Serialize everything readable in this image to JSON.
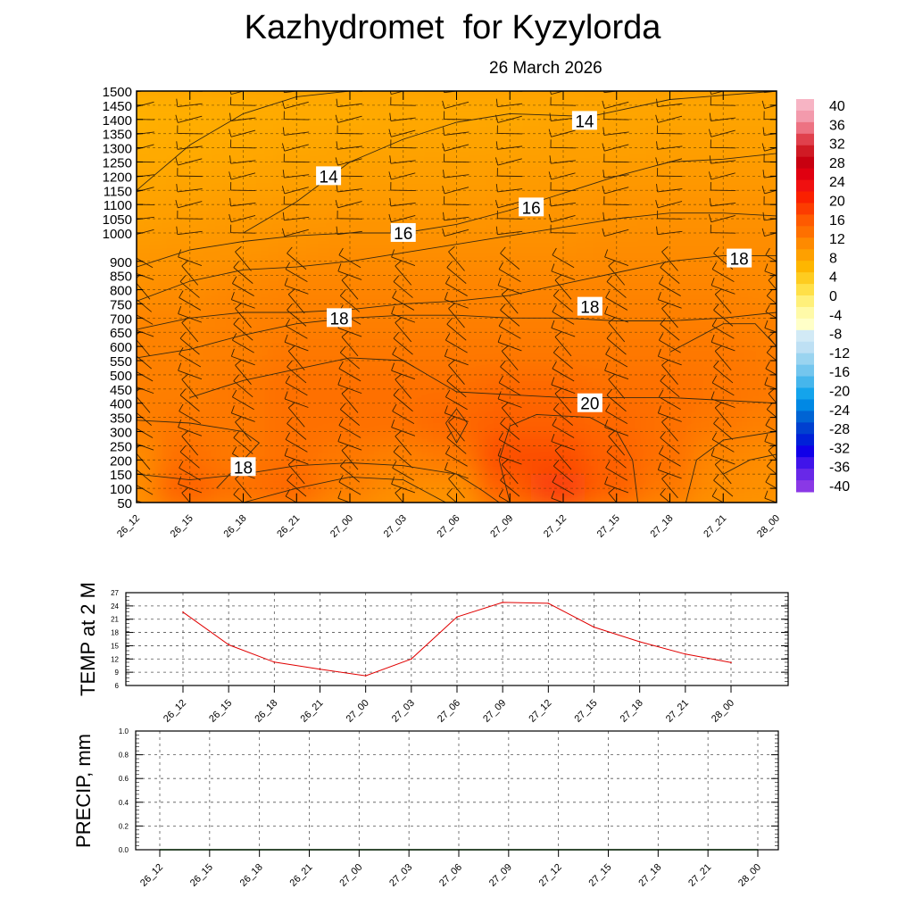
{
  "header": {
    "title": "Kazhydromet  for Kyzylorda",
    "date": "26 March 2026"
  },
  "chart_data": [
    {
      "type": "heatmap",
      "name": "temperature-height-section",
      "x": [
        "26_12",
        "26_15",
        "26_18",
        "26_21",
        "27_00",
        "27_03",
        "27_06",
        "27_09",
        "27_12",
        "27_15",
        "27_18",
        "27_21",
        "28_00"
      ],
      "y": [
        50,
        100,
        150,
        200,
        250,
        300,
        350,
        400,
        450,
        500,
        550,
        600,
        650,
        700,
        750,
        800,
        850,
        900,
        1000,
        1050,
        1100,
        1150,
        1200,
        1250,
        1300,
        1350,
        1400,
        1450,
        1500
      ],
      "ylim": [
        50,
        1500
      ],
      "contour_labels": [
        {
          "text": "14",
          "x": 3.6,
          "y": 1200
        },
        {
          "text": "14",
          "x": 8.4,
          "y": 1395
        },
        {
          "text": "16",
          "x": 5.0,
          "y": 1000
        },
        {
          "text": "16",
          "x": 7.4,
          "y": 1090
        },
        {
          "text": "18",
          "x": 11.3,
          "y": 910
        },
        {
          "text": "18",
          "x": 8.5,
          "y": 740
        },
        {
          "text": "18",
          "x": 3.8,
          "y": 700
        },
        {
          "text": "20",
          "x": 8.5,
          "y": 400
        },
        {
          "text": "18",
          "x": 2.0,
          "y": 175
        }
      ],
      "colorbar": {
        "ticks": [
          "40",
          "36",
          "32",
          "28",
          "24",
          "20",
          "16",
          "12",
          "8",
          "4",
          "0",
          "-4",
          "-8",
          "-12",
          "-16",
          "-20",
          "-24",
          "-28",
          "-32",
          "-36",
          "-40"
        ],
        "colors": [
          "#f7b4c4",
          "#f39aac",
          "#ed7282",
          "#e0404c",
          "#d01a24",
          "#c80010",
          "#e00010",
          "#f01010",
          "#fa2000",
          "#fc3c00",
          "#fe5a00",
          "#fe7000",
          "#fe8a00",
          "#fea000",
          "#feb600",
          "#fecc20",
          "#ffe048",
          "#fff07a",
          "#fffaa8",
          "#ffffc8",
          "#d2eaf6",
          "#bee0f4",
          "#9ad4f0",
          "#74c6ee",
          "#46b6ec",
          "#14a4ec",
          "#0088e4",
          "#0064d4",
          "#0040d0",
          "#0020d8",
          "#1000e8",
          "#4014ea",
          "#6828e8",
          "#8a38e6"
        ]
      },
      "temperature_field": [
        [
          17.0,
          20.0,
          19.0,
          19.5,
          18.0,
          17.0,
          16.5,
          20.0,
          21.0,
          20.0,
          18.5,
          17.0,
          16.5
        ],
        [
          17.0,
          19.0,
          18.5,
          19.0,
          18.5,
          18.0,
          18.5,
          20.5,
          20.5,
          20.0,
          19.0,
          17.5,
          17.0
        ],
        [
          18.0,
          18.5,
          18.5,
          19.0,
          19.0,
          19.0,
          19.5,
          20.0,
          20.0,
          19.5,
          19.0,
          18.5,
          18.0
        ],
        [
          18.0,
          18.0,
          18.5,
          19.0,
          19.0,
          19.0,
          19.0,
          19.5,
          19.5,
          19.0,
          19.0,
          18.8,
          18.5
        ],
        [
          17.8,
          17.8,
          18.0,
          18.5,
          18.5,
          18.5,
          18.5,
          18.5,
          18.5,
          18.5,
          18.5,
          18.5,
          18.2
        ],
        [
          17.5,
          17.5,
          17.8,
          18.0,
          18.0,
          18.0,
          18.0,
          18.0,
          18.0,
          18.0,
          18.0,
          18.0,
          17.8
        ],
        [
          16.5,
          16.8,
          17.2,
          17.5,
          17.5,
          17.5,
          17.5,
          17.5,
          17.5,
          17.5,
          17.5,
          17.5,
          17.2
        ],
        [
          15.8,
          16.0,
          16.2,
          16.5,
          16.8,
          16.8,
          16.8,
          16.8,
          16.8,
          17.0,
          17.0,
          17.0,
          17.0
        ],
        [
          15.0,
          15.3,
          15.6,
          15.8,
          16.0,
          16.0,
          16.0,
          16.2,
          16.2,
          16.4,
          16.5,
          16.5,
          16.5
        ],
        [
          14.2,
          14.5,
          14.8,
          15.0,
          15.2,
          15.3,
          15.3,
          15.5,
          15.6,
          15.8,
          15.8,
          15.8,
          15.8
        ],
        [
          13.5,
          13.8,
          14.0,
          14.3,
          14.5,
          14.6,
          14.7,
          14.8,
          15.0,
          15.0,
          15.1,
          15.1,
          15.1
        ],
        [
          13.0,
          13.2,
          13.5,
          13.8,
          13.8,
          13.9,
          14.0,
          14.1,
          14.3,
          14.4,
          14.5,
          14.5,
          14.5
        ]
      ],
      "contours": [
        {
          "level": 14,
          "points": [
            [
              0.0,
              1150
            ],
            [
              1.0,
              1310
            ],
            [
              2.0,
              1420
            ],
            [
              3.0,
              1480
            ],
            [
              4.0,
              1500
            ]
          ]
        },
        {
          "level": 14,
          "points": [
            [
              2.0,
              1000
            ],
            [
              3.0,
              1110
            ],
            [
              4.0,
              1250
            ],
            [
              5.0,
              1330
            ],
            [
              6.0,
              1390
            ],
            [
              7.0,
              1420
            ],
            [
              8.5,
              1410
            ],
            [
              10.0,
              1470
            ],
            [
              12.0,
              1500
            ]
          ]
        },
        {
          "level": 16,
          "points": [
            [
              0.0,
              880
            ],
            [
              1.0,
              940
            ],
            [
              2.0,
              970
            ],
            [
              3.0,
              990
            ],
            [
              4.0,
              1000
            ],
            [
              5.0,
              1000
            ],
            [
              6.0,
              1030
            ],
            [
              7.0,
              1080
            ],
            [
              8.0,
              1140
            ],
            [
              9.0,
              1200
            ],
            [
              10.0,
              1250
            ],
            [
              11.0,
              1260
            ],
            [
              12.0,
              1280
            ]
          ]
        },
        {
          "level": 16,
          "points": [
            [
              0.0,
              760
            ],
            [
              1.0,
              830
            ],
            [
              2.0,
              870
            ],
            [
              3.0,
              880
            ],
            [
              4.0,
              900
            ],
            [
              5.0,
              930
            ],
            [
              6.0,
              960
            ],
            [
              7.0,
              990
            ],
            [
              8.0,
              1020
            ],
            [
              9.0,
              1050
            ],
            [
              10.0,
              1070
            ],
            [
              11.0,
              1070
            ],
            [
              12.0,
              1060
            ]
          ]
        },
        {
          "level": 18,
          "points": [
            [
              0.0,
              660
            ],
            [
              1.0,
              700
            ],
            [
              2.0,
              720
            ],
            [
              3.0,
              720
            ],
            [
              4.0,
              730
            ],
            [
              5.0,
              750
            ],
            [
              6.0,
              760
            ],
            [
              7.0,
              780
            ],
            [
              8.0,
              820
            ],
            [
              9.0,
              860
            ],
            [
              10.0,
              900
            ],
            [
              11.0,
              920
            ],
            [
              12.0,
              920
            ]
          ]
        },
        {
          "level": 18,
          "points": [
            [
              0.0,
              560
            ],
            [
              1.0,
              590
            ],
            [
              2.0,
              640
            ],
            [
              3.0,
              680
            ],
            [
              4.0,
              700
            ],
            [
              5.0,
              710
            ],
            [
              6.0,
              710
            ],
            [
              7.0,
              700
            ],
            [
              8.0,
              700
            ],
            [
              9.0,
              690
            ],
            [
              10.0,
              690
            ],
            [
              11.0,
              700
            ],
            [
              12.0,
              720
            ]
          ]
        },
        {
          "level": 20,
          "points": [
            [
              1.0,
              420
            ],
            [
              2.0,
              480
            ],
            [
              3.0,
              520
            ],
            [
              4.0,
              560
            ],
            [
              5.0,
              550
            ],
            [
              6.0,
              440
            ],
            [
              7.0,
              430
            ],
            [
              8.0,
              420
            ],
            [
              9.0,
              420
            ],
            [
              10.0,
              420
            ],
            [
              11.0,
              410
            ],
            [
              12.0,
              400
            ]
          ]
        },
        {
          "level": 20,
          "points": [
            [
              0.0,
              340
            ],
            [
              1.0,
              330
            ],
            [
              2.0,
              300
            ],
            [
              2.3,
              260
            ],
            [
              2.0,
              200
            ],
            [
              1.5,
              100
            ]
          ]
        },
        {
          "level": 20,
          "points": [
            [
              7.0,
              50
            ],
            [
              6.8,
              200
            ],
            [
              7.0,
              320
            ],
            [
              7.5,
              360
            ],
            [
              8.5,
              350
            ],
            [
              9.0,
              300
            ],
            [
              9.3,
              200
            ],
            [
              9.4,
              50
            ]
          ]
        },
        {
          "level": 18,
          "points": [
            [
              2.0,
              50
            ],
            [
              3.0,
              100
            ],
            [
              4.0,
              140
            ],
            [
              5.0,
              130
            ],
            [
              5.5,
              80
            ],
            [
              5.8,
              50
            ]
          ]
        },
        {
          "level": 18,
          "points": [
            [
              0.0,
              150
            ],
            [
              1.0,
              130
            ],
            [
              2.0,
              150
            ],
            [
              3.0,
              180
            ],
            [
              4.0,
              190
            ],
            [
              5.0,
              180
            ],
            [
              6.0,
              150
            ],
            [
              6.5,
              90
            ],
            [
              6.8,
              50
            ]
          ]
        },
        {
          "level": 20,
          "points": [
            [
              10.3,
              50
            ],
            [
              10.5,
              200
            ],
            [
              11.0,
              270
            ],
            [
              12.0,
              300
            ]
          ]
        },
        {
          "level": 22,
          "points": [
            [
              11.0,
              150
            ],
            [
              11.5,
              200
            ],
            [
              12.0,
              220
            ]
          ]
        },
        {
          "level": 20,
          "points": [
            [
              5.8,
              330
            ],
            [
              6.0,
              380
            ],
            [
              6.2,
              330
            ],
            [
              6.0,
              260
            ],
            [
              5.8,
              330
            ]
          ]
        },
        {
          "level": 22,
          "points": [
            [
              10.0,
              580
            ],
            [
              11.0,
              680
            ],
            [
              11.6,
              680
            ],
            [
              12.0,
              600
            ],
            [
              12.0,
              500
            ]
          ]
        }
      ],
      "wind_barbs": "Wind barbs at each time step on every height level"
    },
    {
      "type": "line",
      "name": "temp-2m",
      "ylabel": "TEMP at 2 M",
      "categories": [
        "26_12",
        "26_15",
        "26_18",
        "26_21",
        "27_00",
        "27_03",
        "27_06",
        "27_09",
        "27_12",
        "27_15",
        "27_18",
        "27_21",
        "28_00"
      ],
      "values": [
        22.6,
        15.2,
        11.3,
        9.7,
        8.2,
        12.0,
        21.5,
        24.8,
        24.6,
        19.2,
        15.9,
        13.1,
        11.2
      ],
      "yticks": [
        "6",
        "9",
        "12",
        "15",
        "18",
        "21",
        "24",
        "27"
      ],
      "ylim": [
        6,
        27
      ],
      "line_color": "#e00000"
    },
    {
      "type": "line",
      "name": "precipitation",
      "ylabel": "PRECIP, mm",
      "categories": [
        "26_12",
        "26_15",
        "26_18",
        "26_21",
        "27_00",
        "27_03",
        "27_06",
        "27_09",
        "27_12",
        "27_15",
        "27_18",
        "27_21",
        "28_00"
      ],
      "values": [
        0,
        0,
        0,
        0,
        0,
        0,
        0,
        0,
        0,
        0,
        0,
        0,
        0
      ],
      "yticks": [
        "0.0",
        "0.2",
        "0.4",
        "0.6",
        "0.8",
        "1.0"
      ],
      "ylim": [
        0,
        1
      ],
      "line_color": "#0a7a0a"
    }
  ]
}
